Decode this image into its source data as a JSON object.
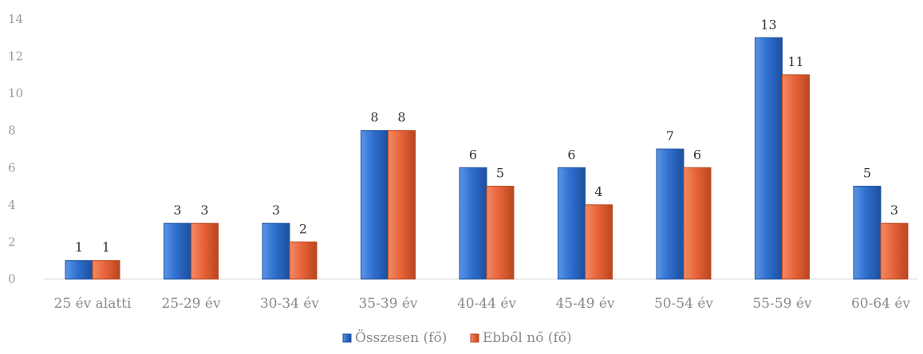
{
  "chart_data": {
    "type": "bar",
    "title": "",
    "xlabel": "",
    "ylabel": "",
    "ylim": [
      0,
      14
    ],
    "yticks": [
      0,
      2,
      4,
      6,
      8,
      10,
      12,
      14
    ],
    "grid": false,
    "legend_position": "bottom",
    "categories": [
      "25 év alatti",
      "25-29 év",
      "30-34 év",
      "35-39 év",
      "40-44 év",
      "45-49 év",
      "50-54 év",
      "55-59 év",
      "60-64 év"
    ],
    "series": [
      {
        "name": "Összesen (fő)",
        "color": "#2f6fce",
        "values": [
          1,
          3,
          3,
          8,
          6,
          6,
          7,
          13,
          5
        ]
      },
      {
        "name": "Ebből nő (fő)",
        "color": "#e8643a",
        "values": [
          1,
          3,
          2,
          8,
          5,
          4,
          6,
          11,
          3
        ]
      }
    ]
  }
}
